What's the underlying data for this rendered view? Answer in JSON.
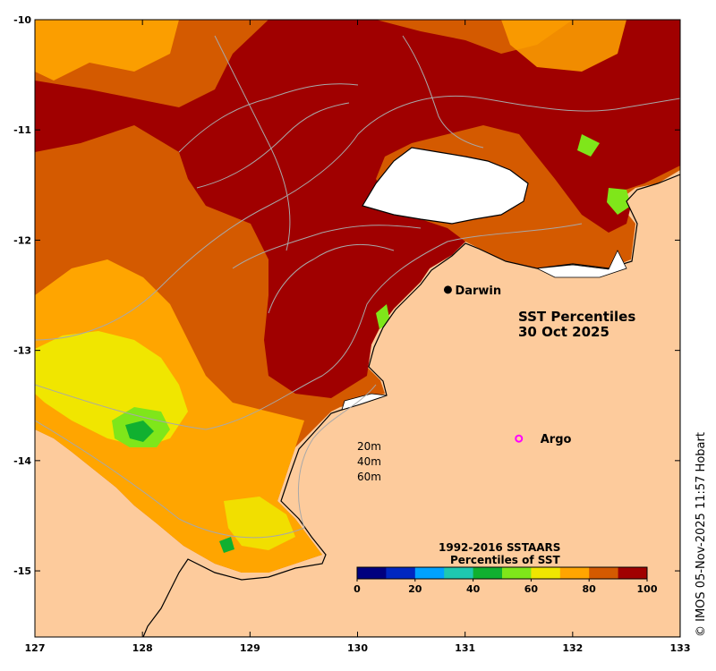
{
  "title": {
    "line1": "SST Percentiles",
    "line2": "30 Oct 2025"
  },
  "axes": {
    "x_ticks": [
      "127",
      "128",
      "129",
      "130",
      "131",
      "132",
      "133"
    ],
    "y_ticks": [
      "-10",
      "-11",
      "-12",
      "-13",
      "-14",
      "-15"
    ],
    "lon_range": [
      127,
      133
    ],
    "lat_range": [
      -15.6,
      -10
    ]
  },
  "places": [
    {
      "name": "Darwin",
      "lon": 130.84,
      "lat": -12.45,
      "marker": "black-dot"
    },
    {
      "name": "Argo",
      "lon": 131.5,
      "lat": -13.8,
      "marker": "magenta-circle"
    }
  ],
  "depth_legend": [
    "20m",
    "40m",
    "60m"
  ],
  "colorbar": {
    "title_line1": "1992-2016 SSTAARS",
    "title_line2": "Percentiles of SST",
    "ticks": [
      "0",
      "20",
      "40",
      "60",
      "80",
      "100"
    ],
    "colors": [
      "#00007f",
      "#0027c0",
      "#00a2ff",
      "#1ec8b0",
      "#10b030",
      "#7fe61a",
      "#f0e600",
      "#ffa500",
      "#d45a00",
      "#a00000"
    ]
  },
  "colors": {
    "land": "#fdcb9c",
    "coast": "#000000",
    "bathymetry": "#a8a8a8"
  },
  "credit": "© IMOS 05-Nov-2025 11:57 Hobart"
}
